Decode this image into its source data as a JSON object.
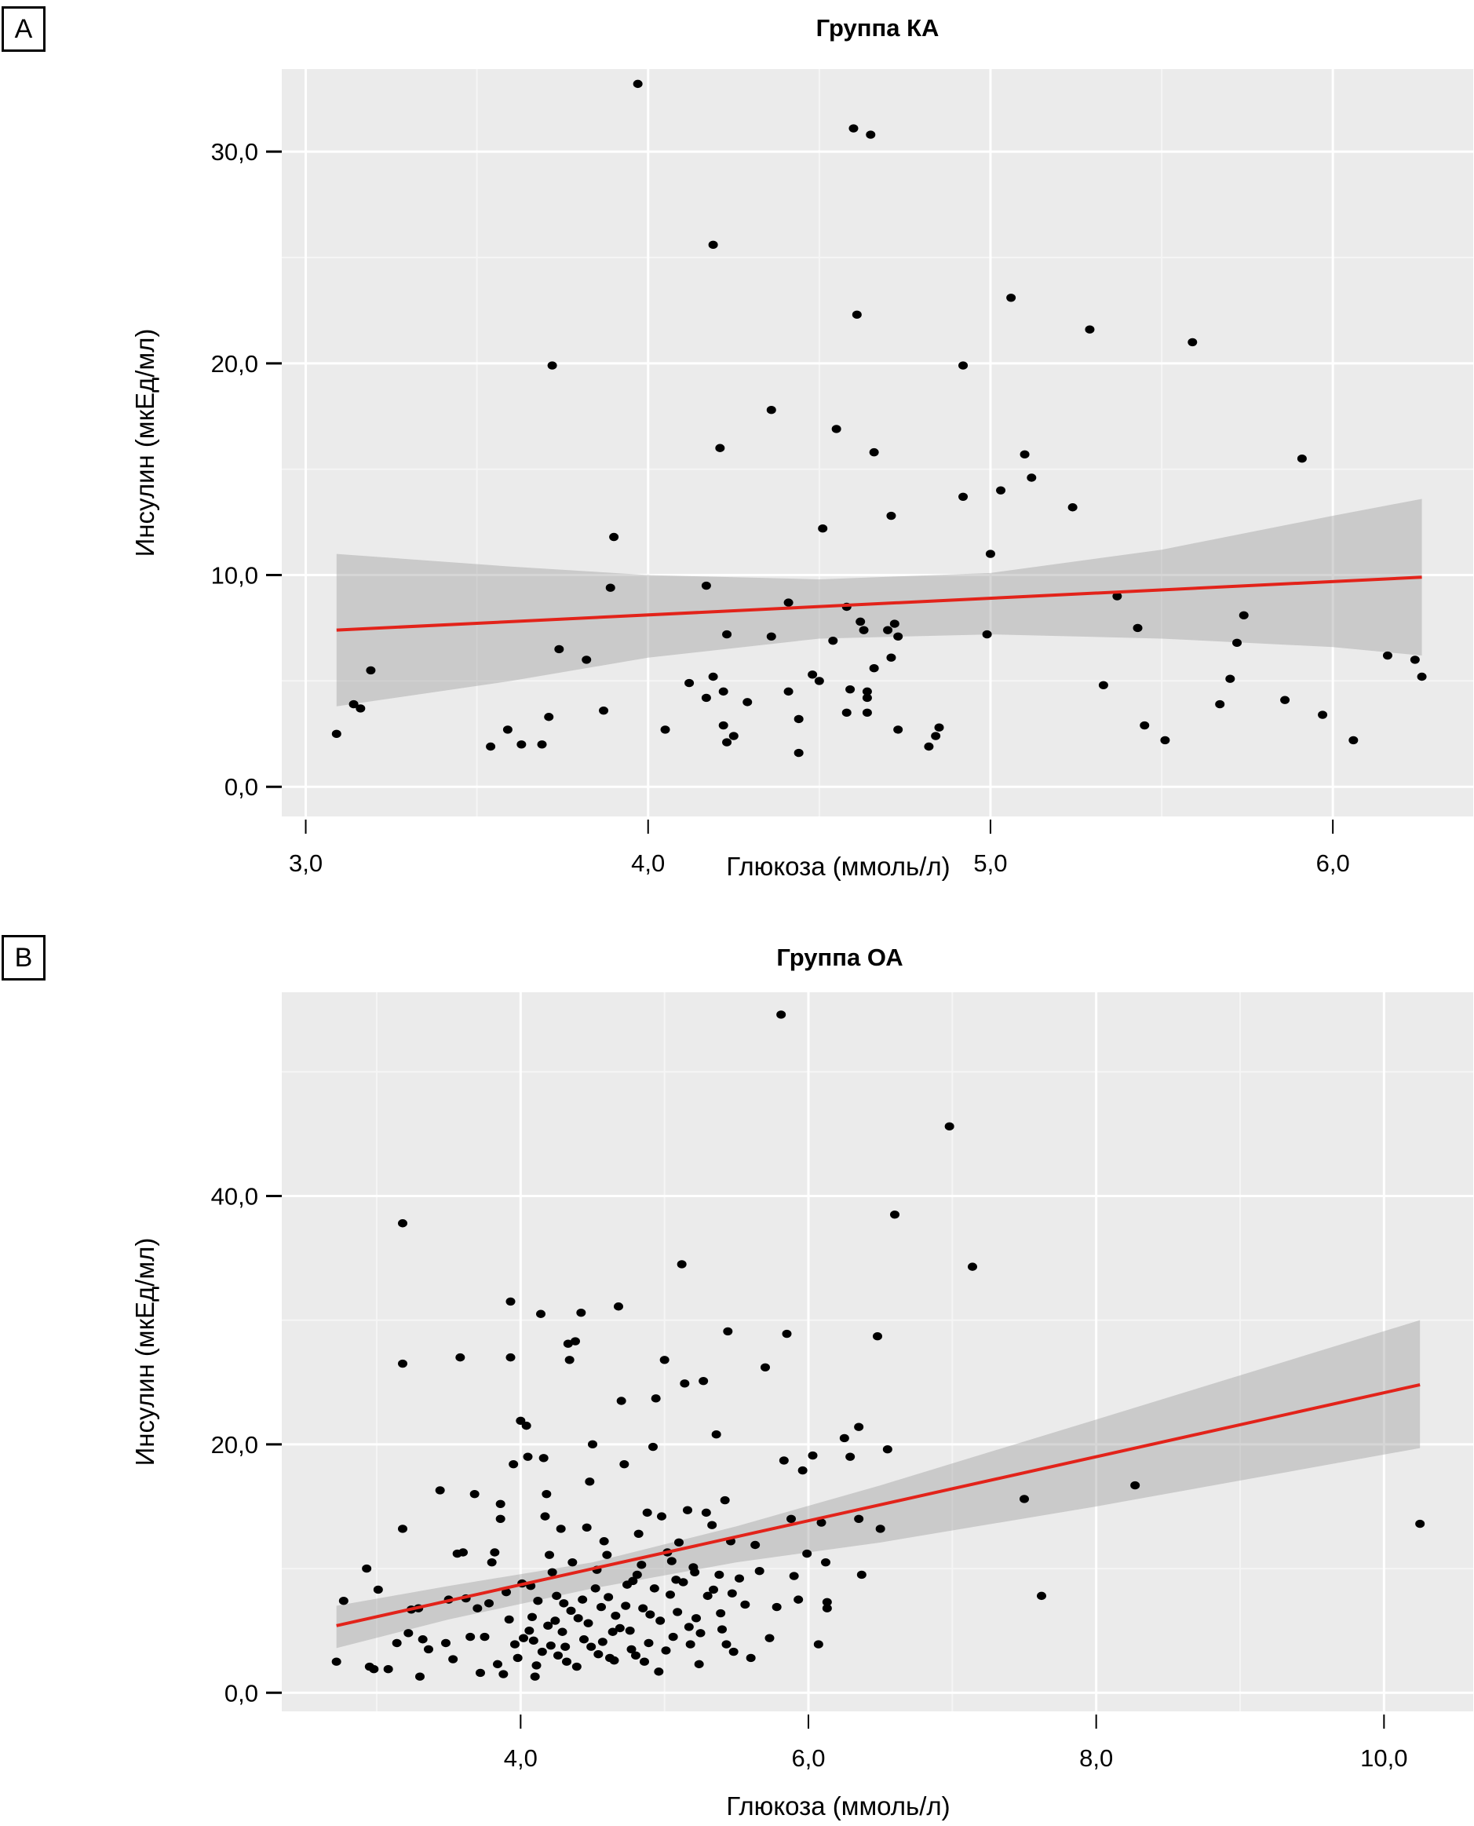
{
  "panels": [
    {
      "label": "A"
    },
    {
      "label": "B"
    }
  ],
  "chart_data": [
    {
      "type": "scatter",
      "panel": "A",
      "title": "Группа КА",
      "xlabel": "Глюкоза (ммоль/л)",
      "ylabel": "Инсулин (мкЕд/мл)",
      "xlim": [
        2.93,
        6.41
      ],
      "ylim": [
        -1.4,
        33.9
      ],
      "xticks": [
        3.0,
        4.0,
        5.0,
        6.0
      ],
      "xtick_labels": [
        "3,0",
        "4,0",
        "5,0",
        "6,0"
      ],
      "yticks": [
        0,
        10,
        20,
        30
      ],
      "ytick_labels": [
        "0,0",
        "10,0",
        "20,0",
        "30,0"
      ],
      "grid": true,
      "points": [
        [
          3.09,
          2.5
        ],
        [
          3.14,
          3.9
        ],
        [
          3.16,
          3.7
        ],
        [
          3.19,
          5.5
        ],
        [
          3.54,
          1.9
        ],
        [
          3.59,
          2.7
        ],
        [
          3.63,
          2.0
        ],
        [
          3.69,
          2.0
        ],
        [
          3.71,
          3.3
        ],
        [
          3.72,
          19.9
        ],
        [
          3.74,
          6.5
        ],
        [
          3.82,
          6.0
        ],
        [
          3.87,
          3.6
        ],
        [
          3.89,
          9.4
        ],
        [
          3.9,
          11.8
        ],
        [
          3.97,
          33.2
        ],
        [
          4.05,
          2.7
        ],
        [
          4.12,
          4.9
        ],
        [
          4.17,
          4.2
        ],
        [
          4.17,
          9.5
        ],
        [
          4.19,
          5.2
        ],
        [
          4.19,
          25.6
        ],
        [
          4.21,
          16.0
        ],
        [
          4.22,
          4.5
        ],
        [
          4.22,
          2.9
        ],
        [
          4.23,
          7.2
        ],
        [
          4.23,
          2.1
        ],
        [
          4.25,
          2.4
        ],
        [
          4.29,
          4.0
        ],
        [
          4.36,
          17.8
        ],
        [
          4.36,
          7.1
        ],
        [
          4.41,
          8.7
        ],
        [
          4.41,
          4.5
        ],
        [
          4.44,
          3.2
        ],
        [
          4.44,
          1.6
        ],
        [
          4.48,
          5.3
        ],
        [
          4.5,
          5.0
        ],
        [
          4.51,
          12.2
        ],
        [
          4.54,
          6.9
        ],
        [
          4.55,
          16.9
        ],
        [
          4.58,
          3.5
        ],
        [
          4.58,
          8.5
        ],
        [
          4.59,
          4.6
        ],
        [
          4.6,
          31.1
        ],
        [
          4.61,
          22.3
        ],
        [
          4.62,
          7.8
        ],
        [
          4.63,
          7.4
        ],
        [
          4.64,
          4.5
        ],
        [
          4.64,
          4.2
        ],
        [
          4.64,
          3.5
        ],
        [
          4.65,
          30.8
        ],
        [
          4.66,
          5.6
        ],
        [
          4.66,
          15.8
        ],
        [
          4.71,
          12.8
        ],
        [
          4.7,
          7.4
        ],
        [
          4.71,
          6.1
        ],
        [
          4.72,
          7.7
        ],
        [
          4.73,
          7.1
        ],
        [
          4.73,
          2.7
        ],
        [
          4.82,
          1.9
        ],
        [
          4.84,
          2.4
        ],
        [
          4.85,
          2.8
        ],
        [
          4.92,
          19.9
        ],
        [
          4.92,
          13.7
        ],
        [
          4.99,
          7.2
        ],
        [
          5.0,
          11.0
        ],
        [
          5.03,
          14.0
        ],
        [
          5.06,
          23.1
        ],
        [
          5.1,
          15.7
        ],
        [
          5.12,
          14.6
        ],
        [
          5.24,
          13.2
        ],
        [
          5.29,
          21.6
        ],
        [
          5.33,
          4.8
        ],
        [
          5.37,
          9.0
        ],
        [
          5.43,
          7.5
        ],
        [
          5.45,
          2.9
        ],
        [
          5.51,
          2.2
        ],
        [
          5.59,
          21.0
        ],
        [
          5.67,
          3.9
        ],
        [
          5.7,
          5.1
        ],
        [
          5.72,
          6.8
        ],
        [
          5.74,
          8.1
        ],
        [
          5.86,
          4.1
        ],
        [
          5.91,
          15.5
        ],
        [
          5.97,
          3.4
        ],
        [
          6.06,
          2.2
        ],
        [
          6.16,
          6.2
        ],
        [
          6.24,
          6.0
        ],
        [
          6.26,
          5.2
        ]
      ],
      "trend_line": {
        "color": "#e2231a",
        "x": [
          3.09,
          6.26
        ],
        "y": [
          7.4,
          9.9
        ]
      },
      "confidence_band": {
        "color": "#c6c6c6",
        "x": [
          3.09,
          3.6,
          4.0,
          4.5,
          5.0,
          5.5,
          6.0,
          6.26
        ],
        "upper": [
          11.0,
          10.4,
          10.0,
          9.8,
          10.1,
          11.2,
          12.8,
          13.6
        ],
        "lower": [
          3.8,
          5.0,
          6.1,
          7.0,
          7.2,
          7.0,
          6.6,
          6.2
        ]
      }
    },
    {
      "type": "scatter",
      "panel": "B",
      "title": "Группа ОА",
      "xlabel": "Глюкоза (ммоль/л)",
      "ylabel": "Инсулин (мкЕд/мл)",
      "xlim": [
        2.34,
        10.62
      ],
      "ylim": [
        -1.5,
        56.4
      ],
      "xticks": [
        4.0,
        6.0,
        8.0,
        10.0
      ],
      "xtick_labels": [
        "4,0",
        "6,0",
        "8,0",
        "10,0"
      ],
      "yticks": [
        0,
        20,
        40
      ],
      "ytick_labels": [
        "0,0",
        "20,0",
        "40,0"
      ],
      "grid": true,
      "points": [
        [
          2.72,
          2.5
        ],
        [
          2.77,
          7.4
        ],
        [
          2.93,
          10.0
        ],
        [
          2.95,
          2.1
        ],
        [
          2.98,
          1.9
        ],
        [
          3.01,
          8.3
        ],
        [
          3.08,
          1.9
        ],
        [
          3.14,
          4.0
        ],
        [
          3.18,
          37.8
        ],
        [
          3.18,
          26.5
        ],
        [
          3.18,
          13.2
        ],
        [
          3.22,
          4.8
        ],
        [
          3.24,
          6.7
        ],
        [
          3.29,
          6.8
        ],
        [
          3.3,
          1.3
        ],
        [
          3.32,
          4.3
        ],
        [
          3.36,
          3.5
        ],
        [
          3.44,
          16.3
        ],
        [
          3.48,
          4.0
        ],
        [
          3.5,
          7.5
        ],
        [
          3.53,
          2.7
        ],
        [
          3.56,
          11.2
        ],
        [
          3.58,
          27.0
        ],
        [
          3.6,
          11.3
        ],
        [
          3.62,
          7.6
        ],
        [
          3.65,
          4.5
        ],
        [
          3.68,
          16.0
        ],
        [
          3.7,
          6.8
        ],
        [
          3.72,
          1.6
        ],
        [
          3.75,
          4.5
        ],
        [
          3.78,
          7.2
        ],
        [
          3.8,
          10.5
        ],
        [
          3.82,
          11.3
        ],
        [
          3.84,
          2.3
        ],
        [
          3.86,
          15.2
        ],
        [
          3.86,
          14.0
        ],
        [
          3.88,
          1.5
        ],
        [
          3.9,
          8.1
        ],
        [
          3.92,
          5.9
        ],
        [
          3.93,
          31.5
        ],
        [
          3.93,
          27.0
        ],
        [
          3.95,
          18.4
        ],
        [
          3.98,
          2.8
        ],
        [
          4.0,
          21.9
        ],
        [
          4.02,
          4.4
        ],
        [
          4.04,
          21.5
        ],
        [
          4.05,
          19.0
        ],
        [
          4.07,
          8.6
        ],
        [
          4.09,
          4.2
        ],
        [
          4.1,
          1.3
        ],
        [
          4.12,
          7.4
        ],
        [
          4.14,
          30.5
        ],
        [
          4.16,
          18.9
        ],
        [
          4.17,
          14.2
        ],
        [
          4.18,
          16.0
        ],
        [
          4.2,
          11.1
        ],
        [
          4.22,
          9.7
        ],
        [
          4.24,
          5.8
        ],
        [
          4.26,
          3.0
        ],
        [
          4.28,
          13.2
        ],
        [
          4.3,
          7.2
        ],
        [
          4.32,
          2.5
        ],
        [
          4.33,
          28.1
        ],
        [
          4.34,
          26.8
        ],
        [
          4.36,
          10.5
        ],
        [
          4.38,
          28.3
        ],
        [
          4.4,
          6.0
        ],
        [
          4.42,
          30.6
        ],
        [
          4.44,
          4.3
        ],
        [
          4.46,
          13.3
        ],
        [
          4.48,
          17.0
        ],
        [
          4.5,
          20.0
        ],
        [
          4.52,
          8.4
        ],
        [
          4.54,
          3.1
        ],
        [
          4.56,
          6.9
        ],
        [
          4.58,
          12.2
        ],
        [
          4.6,
          11.1
        ],
        [
          4.62,
          2.8
        ],
        [
          4.64,
          4.9
        ],
        [
          4.66,
          6.2
        ],
        [
          4.68,
          31.1
        ],
        [
          4.7,
          23.5
        ],
        [
          4.72,
          18.4
        ],
        [
          4.74,
          8.7
        ],
        [
          4.76,
          5.0
        ],
        [
          4.78,
          9.0
        ],
        [
          4.8,
          3.0
        ],
        [
          4.82,
          12.8
        ],
        [
          4.84,
          10.3
        ],
        [
          4.86,
          2.5
        ],
        [
          4.88,
          14.5
        ],
        [
          4.9,
          6.3
        ],
        [
          4.92,
          19.8
        ],
        [
          4.94,
          23.7
        ],
        [
          4.96,
          1.7
        ],
        [
          4.98,
          14.2
        ],
        [
          5.0,
          26.8
        ],
        [
          5.02,
          11.3
        ],
        [
          5.04,
          7.9
        ],
        [
          5.06,
          4.5
        ],
        [
          5.08,
          9.1
        ],
        [
          5.1,
          12.1
        ],
        [
          5.12,
          34.5
        ],
        [
          5.14,
          24.9
        ],
        [
          5.16,
          14.7
        ],
        [
          5.18,
          3.9
        ],
        [
          5.2,
          10.1
        ],
        [
          5.22,
          6.0
        ],
        [
          5.24,
          2.3
        ],
        [
          5.27,
          25.1
        ],
        [
          5.3,
          7.8
        ],
        [
          5.33,
          13.5
        ],
        [
          5.36,
          20.8
        ],
        [
          5.38,
          9.5
        ],
        [
          5.4,
          5.1
        ],
        [
          5.42,
          15.5
        ],
        [
          5.44,
          29.1
        ],
        [
          5.46,
          12.2
        ],
        [
          5.48,
          3.3
        ],
        [
          5.52,
          9.2
        ],
        [
          5.56,
          7.1
        ],
        [
          5.6,
          2.8
        ],
        [
          5.63,
          11.9
        ],
        [
          5.66,
          9.8
        ],
        [
          5.7,
          26.2
        ],
        [
          5.73,
          4.4
        ],
        [
          5.78,
          6.9
        ],
        [
          5.81,
          54.6
        ],
        [
          5.83,
          18.7
        ],
        [
          5.85,
          28.9
        ],
        [
          5.88,
          14.0
        ],
        [
          5.9,
          9.4
        ],
        [
          5.93,
          7.5
        ],
        [
          5.96,
          17.9
        ],
        [
          5.99,
          11.2
        ],
        [
          6.03,
          19.1
        ],
        [
          6.07,
          3.9
        ],
        [
          6.09,
          13.7
        ],
        [
          6.12,
          10.5
        ],
        [
          6.13,
          7.3
        ],
        [
          6.13,
          6.8
        ],
        [
          6.25,
          20.5
        ],
        [
          6.29,
          19.0
        ],
        [
          6.35,
          21.4
        ],
        [
          6.35,
          14.0
        ],
        [
          6.37,
          9.5
        ],
        [
          6.48,
          28.7
        ],
        [
          6.5,
          13.2
        ],
        [
          6.55,
          19.6
        ],
        [
          6.6,
          38.5
        ],
        [
          6.98,
          45.6
        ],
        [
          7.14,
          34.3
        ],
        [
          7.5,
          15.6
        ],
        [
          7.62,
          7.8
        ],
        [
          8.27,
          16.7
        ],
        [
          10.25,
          13.6
        ],
        [
          4.08,
          6.1
        ],
        [
          4.15,
          3.3
        ],
        [
          4.19,
          5.4
        ],
        [
          4.25,
          7.8
        ],
        [
          4.29,
          4.9
        ],
        [
          4.31,
          3.7
        ],
        [
          4.35,
          6.6
        ],
        [
          4.39,
          2.1
        ],
        [
          4.43,
          7.5
        ],
        [
          4.47,
          5.6
        ],
        [
          4.49,
          3.7
        ],
        [
          4.53,
          9.9
        ],
        [
          4.57,
          4.1
        ],
        [
          4.61,
          7.7
        ],
        [
          4.65,
          2.6
        ],
        [
          4.69,
          5.2
        ],
        [
          4.73,
          7.0
        ],
        [
          4.77,
          3.5
        ],
        [
          4.81,
          9.5
        ],
        [
          4.85,
          6.8
        ],
        [
          4.89,
          4.0
        ],
        [
          4.93,
          8.4
        ],
        [
          4.97,
          5.8
        ],
        [
          5.01,
          3.4
        ],
        [
          5.05,
          10.6
        ],
        [
          5.09,
          6.5
        ],
        [
          5.13,
          8.9
        ],
        [
          5.17,
          5.3
        ],
        [
          5.21,
          9.7
        ],
        [
          5.25,
          4.8
        ],
        [
          5.29,
          14.5
        ],
        [
          5.34,
          8.3
        ],
        [
          5.39,
          6.4
        ],
        [
          5.43,
          3.9
        ],
        [
          5.47,
          8.0
        ],
        [
          3.96,
          3.9
        ],
        [
          4.01,
          8.8
        ],
        [
          4.06,
          5.0
        ],
        [
          4.11,
          2.2
        ],
        [
          4.21,
          3.8
        ]
      ],
      "trend_line": {
        "color": "#e2231a",
        "x": [
          2.72,
          10.25
        ],
        "y": [
          5.4,
          24.8
        ]
      },
      "confidence_band": {
        "color": "#c6c6c6",
        "x": [
          2.72,
          3.5,
          4.5,
          5.5,
          6.5,
          8.0,
          10.25
        ],
        "upper": [
          7.0,
          8.6,
          10.5,
          13.4,
          16.7,
          22.0,
          30.0
        ],
        "lower": [
          3.6,
          5.9,
          8.4,
          10.5,
          12.1,
          15.0,
          19.7
        ]
      }
    }
  ]
}
